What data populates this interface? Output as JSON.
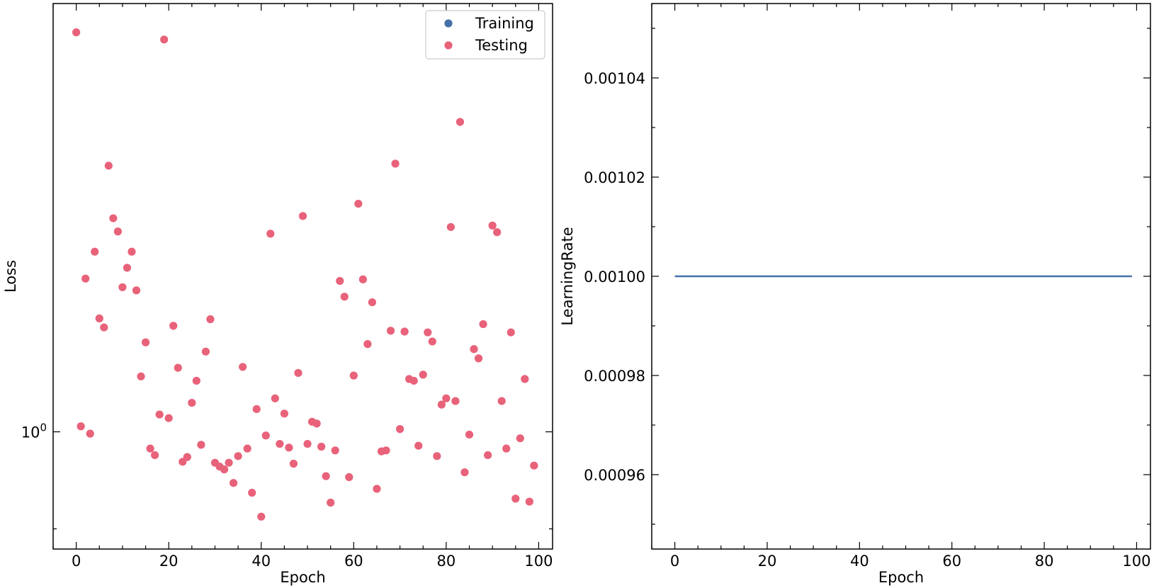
{
  "colors": {
    "training": "#4471a8",
    "testing": "#e8627a",
    "axes": "#000000",
    "legend_border": "#cccccc"
  },
  "chart_data": [
    {
      "type": "scatter",
      "xlabel": "Epoch",
      "ylabel": "Loss",
      "yscale": "log",
      "xlim": [
        -5,
        103
      ],
      "ylim": [
        0.8805,
        1.592
      ],
      "grid": false,
      "legend": {
        "placement": "top-right",
        "entries": [
          "Training",
          "Testing"
        ]
      },
      "x_ticks": [
        {
          "value": 0,
          "label": "0"
        },
        {
          "value": 20,
          "label": "20"
        },
        {
          "value": 40,
          "label": "40"
        },
        {
          "value": 60,
          "label": "60"
        },
        {
          "value": 80,
          "label": "80"
        },
        {
          "value": 100,
          "label": "100"
        }
      ],
      "y_ticks": [
        {
          "value": 1.0,
          "label": "10",
          "exponent": "0"
        }
      ],
      "series": [
        {
          "name": "Training",
          "x": [],
          "y": []
        },
        {
          "name": "Testing",
          "x": [
            0,
            1,
            2,
            3,
            4,
            5,
            6,
            7,
            8,
            9,
            10,
            11,
            12,
            13,
            14,
            15,
            16,
            17,
            18,
            19,
            20,
            21,
            22,
            23,
            24,
            25,
            26,
            27,
            28,
            29,
            30,
            31,
            32,
            33,
            34,
            35,
            36,
            37,
            38,
            39,
            40,
            41,
            42,
            43,
            44,
            45,
            46,
            47,
            48,
            49,
            50,
            51,
            52,
            53,
            54,
            55,
            56,
            57,
            58,
            59,
            60,
            61,
            62,
            63,
            64,
            65,
            66,
            67,
            68,
            69,
            70,
            71,
            72,
            73,
            74,
            75,
            76,
            77,
            78,
            79,
            80,
            81,
            82,
            83,
            84,
            85,
            86,
            87,
            88,
            89,
            90,
            91,
            92,
            93,
            94,
            95,
            96,
            97,
            98,
            99
          ],
          "y": [
            1.543,
            1.006,
            1.181,
            0.998,
            1.216,
            1.131,
            1.12,
            1.335,
            1.261,
            1.243,
            1.17,
            1.195,
            1.216,
            1.166,
            1.062,
            1.102,
            0.982,
            0.975,
            1.019,
            1.531,
            1.015,
            1.122,
            1.072,
            0.968,
            0.973,
            1.032,
            1.057,
            0.986,
            1.091,
            1.13,
            0.967,
            0.963,
            0.96,
            0.967,
            0.946,
            0.974,
            1.073,
            0.982,
            0.936,
            1.025,
            0.912,
            0.996,
            1.24,
            1.037,
            0.987,
            1.02,
            0.983,
            0.966,
            1.066,
            1.264,
            0.987,
            1.011,
            1.009,
            0.984,
            0.953,
            0.926,
            0.98,
            1.178,
            1.158,
            0.952,
            1.063,
            1.281,
            1.18,
            1.1,
            1.151,
            0.94,
            0.979,
            0.98,
            1.116,
            1.338,
            1.003,
            1.115,
            1.059,
            1.057,
            0.985,
            1.064,
            1.114,
            1.103,
            0.974,
            1.03,
            1.037,
            1.249,
            1.034,
            1.4,
            0.957,
            0.997,
            1.094,
            1.083,
            1.124,
            0.975,
            1.251,
            1.242,
            1.034,
            0.982,
            1.114,
            0.93,
            0.993,
            1.059,
            0.927,
            0.964
          ]
        }
      ]
    },
    {
      "type": "line",
      "xlabel": "Epoch",
      "ylabel": "LearningRate",
      "xlim": [
        -5,
        103
      ],
      "ylim": [
        0.000945,
        0.001055
      ],
      "grid": false,
      "x_ticks": [
        {
          "value": 0,
          "label": "0"
        },
        {
          "value": 20,
          "label": "20"
        },
        {
          "value": 40,
          "label": "40"
        },
        {
          "value": 60,
          "label": "60"
        },
        {
          "value": 80,
          "label": "80"
        },
        {
          "value": 100,
          "label": "100"
        }
      ],
      "y_ticks": [
        {
          "value": 0.00096,
          "label": "0.00096"
        },
        {
          "value": 0.00098,
          "label": "0.00098"
        },
        {
          "value": 0.001,
          "label": "0.00100"
        },
        {
          "value": 0.00102,
          "label": "0.00102"
        },
        {
          "value": 0.00104,
          "label": "0.00104"
        }
      ],
      "series": [
        {
          "name": "Training",
          "x": [
            0,
            99
          ],
          "y": [
            0.001,
            0.001
          ]
        }
      ]
    }
  ]
}
